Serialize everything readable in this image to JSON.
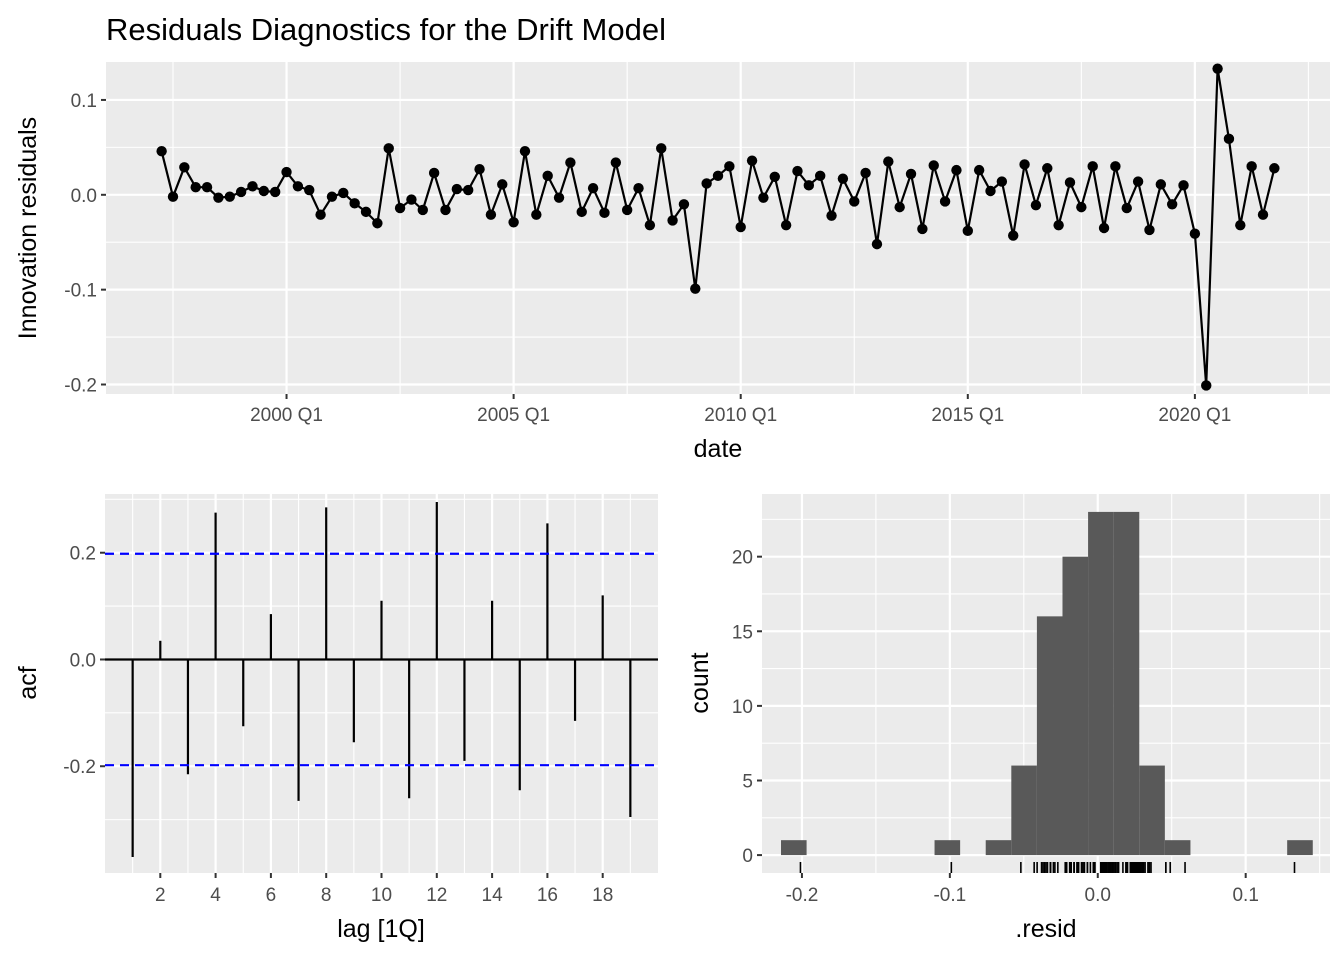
{
  "title": "Residuals Diagnostics for the Drift Model",
  "colors": {
    "panel_bg": "#ebebeb",
    "grid": "#ffffff",
    "data": "#000000",
    "ci": "#0000ff",
    "bar": "#595959"
  },
  "chart_data": [
    {
      "type": "line",
      "name": "residuals-timeplot",
      "xlabel": "date",
      "ylabel": "Innovation residuals",
      "x_ticks": [
        "2000 Q1",
        "2005 Q1",
        "2010 Q1",
        "2015 Q1",
        "2020 Q1"
      ],
      "y_ticks": [
        "-0.2",
        "-0.1",
        "0.0",
        "0.1"
      ],
      "x_start": "1997 Q2",
      "frequency": "quarterly",
      "ylim": [
        -0.21,
        0.14
      ],
      "markers": true,
      "values": [
        0.046,
        -0.002,
        0.029,
        0.008,
        0.008,
        -0.003,
        -0.002,
        0.003,
        0.009,
        0.004,
        0.003,
        0.024,
        0.009,
        0.005,
        -0.021,
        -0.002,
        0.002,
        -0.009,
        -0.018,
        -0.03,
        0.049,
        -0.014,
        -0.005,
        -0.016,
        0.023,
        -0.016,
        0.006,
        0.005,
        0.027,
        -0.021,
        0.011,
        -0.029,
        0.046,
        -0.021,
        0.02,
        -0.003,
        0.034,
        -0.018,
        0.007,
        -0.019,
        0.034,
        -0.016,
        0.007,
        -0.032,
        0.049,
        -0.027,
        -0.01,
        -0.099,
        0.012,
        0.02,
        0.03,
        -0.034,
        0.036,
        -0.003,
        0.019,
        -0.032,
        0.025,
        0.01,
        0.02,
        -0.022,
        0.017,
        -0.007,
        0.023,
        -0.052,
        0.035,
        -0.013,
        0.022,
        -0.036,
        0.031,
        -0.007,
        0.026,
        -0.038,
        0.026,
        0.004,
        0.014,
        -0.043,
        0.032,
        -0.011,
        0.028,
        -0.032,
        0.013,
        -0.013,
        0.03,
        -0.035,
        0.03,
        -0.014,
        0.014,
        -0.037,
        0.011,
        -0.01,
        0.01,
        -0.041,
        -0.201,
        0.133,
        0.059,
        -0.032,
        0.03,
        -0.021,
        0.028
      ]
    },
    {
      "type": "bar",
      "name": "acf",
      "xlabel": "lag [1Q]",
      "ylabel": "acf",
      "x_ticks": [
        "2",
        "4",
        "6",
        "8",
        "10",
        "12",
        "14",
        "16",
        "18"
      ],
      "y_ticks": [
        "-0.2",
        "0.0",
        "0.2"
      ],
      "lags": [
        1,
        2,
        3,
        4,
        5,
        6,
        7,
        8,
        9,
        10,
        11,
        12,
        13,
        14,
        15,
        16,
        17,
        18,
        19
      ],
      "values": [
        -0.37,
        0.035,
        -0.215,
        0.275,
        -0.125,
        0.085,
        -0.265,
        0.285,
        -0.155,
        0.11,
        -0.26,
        0.295,
        -0.19,
        0.11,
        -0.245,
        0.255,
        -0.115,
        0.12,
        -0.295
      ],
      "ci": 0.198,
      "ylim": [
        -0.4,
        0.31
      ],
      "xlim": [
        0,
        20
      ]
    },
    {
      "type": "bar",
      "name": "histogram",
      "xlabel": ".resid",
      "ylabel": "count",
      "x_ticks": [
        "-0.2",
        "-0.1",
        "0.0",
        "0.1"
      ],
      "y_ticks": [
        "0",
        "5",
        "10",
        "15",
        "20"
      ],
      "bin_width": 0.0173,
      "bins": [
        {
          "x": -0.2055,
          "count": 1
        },
        {
          "x": -0.1017,
          "count": 1
        },
        {
          "x": -0.0671,
          "count": 1
        },
        {
          "x": -0.0498,
          "count": 6
        },
        {
          "x": -0.0325,
          "count": 16
        },
        {
          "x": -0.0152,
          "count": 20
        },
        {
          "x": 0.0021,
          "count": 23
        },
        {
          "x": 0.0194,
          "count": 23
        },
        {
          "x": 0.0367,
          "count": 6
        },
        {
          "x": 0.054,
          "count": 1
        },
        {
          "x": 0.1367,
          "count": 1
        }
      ],
      "xlim": [
        -0.227,
        0.157
      ],
      "ylim": [
        -1.2,
        24.2
      ]
    }
  ]
}
